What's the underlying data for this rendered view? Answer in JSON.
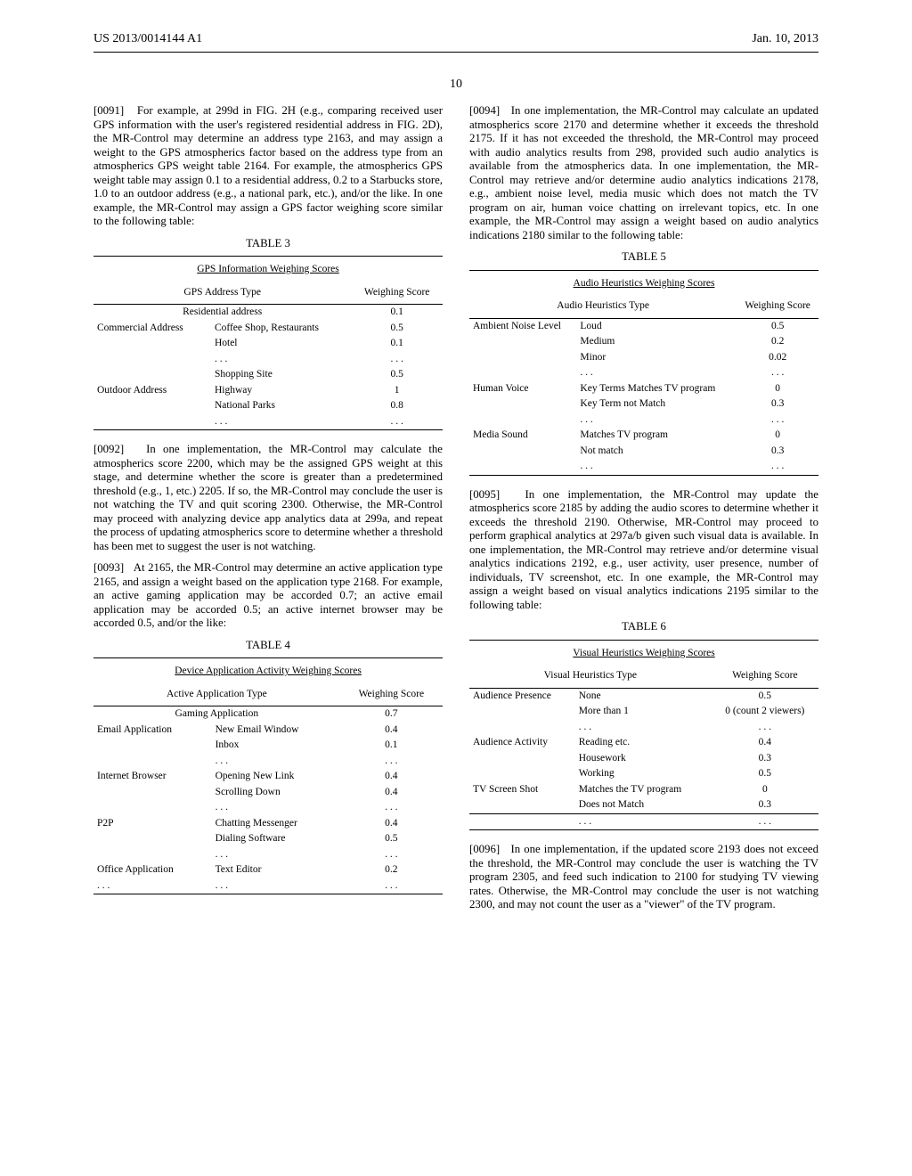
{
  "header": {
    "left": "US 2013/0014144 A1",
    "right": "Jan. 10, 2013"
  },
  "page_number": "10",
  "left_column": {
    "para1": {
      "num": "[0091]",
      "text": "For example, at 299d in FIG. 2H (e.g., comparing received user GPS information with the user's registered residential address in FIG. 2D), the MR-Control may determine an address type 2163, and may assign a weight to the GPS atmospherics factor based on the address type from an atmospherics GPS weight table 2164. For example, the atmospherics GPS weight table may assign 0.1 to a residential address, 0.2 to a Starbucks store, 1.0 to an outdoor address (e.g., a national park, etc.), and/or the like. In one example, the MR-Control may assign a GPS factor weighing score similar to the following table:"
    },
    "table3": {
      "label": "TABLE 3",
      "title": "GPS Information Weighing Scores",
      "header": [
        "GPS Address Type",
        "Weighing Score"
      ],
      "rows": [
        [
          "Residential address",
          "",
          "0.1"
        ],
        [
          "Commercial Address",
          "Coffee Shop, Restaurants",
          "0.5"
        ],
        [
          "",
          "Hotel",
          "0.1"
        ],
        [
          "",
          ". . .",
          ". . ."
        ],
        [
          "",
          "Shopping Site",
          "0.5"
        ],
        [
          "Outdoor Address",
          "Highway",
          "1"
        ],
        [
          "",
          "National Parks",
          "0.8"
        ],
        [
          "",
          ". . .",
          ". . ."
        ]
      ]
    },
    "para2": {
      "num": "[0092]",
      "text": "In one implementation, the MR-Control may calculate the atmospherics score 2200, which may be the assigned GPS weight at this stage, and determine whether the score is greater than a predetermined threshold (e.g., 1, etc.) 2205. If so, the MR-Control may conclude the user is not watching the TV and quit scoring 2300. Otherwise, the MR-Control may proceed with analyzing device app analytics data at 299a, and repeat the process of updating atmospherics score to determine whether a threshold has been met to suggest the user is not watching."
    },
    "para3": {
      "num": "[0093]",
      "text": "At 2165, the MR-Control may determine an active application type 2165, and assign a weight based on the application type 2168. For example, an active gaming application may be accorded 0.7; an active email application may be accorded 0.5; an active internet browser may be accorded 0.5, and/or the like:"
    },
    "table4": {
      "label": "TABLE 4",
      "title": "Device Application Activity Weighing Scores",
      "header": [
        "Active Application Type",
        "Weighing Score"
      ],
      "rows": [
        [
          "Gaming Application",
          "",
          "0.7"
        ],
        [
          "Email Application",
          "New Email Window",
          "0.4"
        ],
        [
          "",
          "Inbox",
          "0.1"
        ],
        [
          "",
          ". . .",
          ". . ."
        ],
        [
          "Internet Browser",
          "Opening New Link",
          "0.4"
        ],
        [
          "",
          "Scrolling Down",
          "0.4"
        ],
        [
          "",
          ". . .",
          ". . ."
        ],
        [
          "P2P",
          "Chatting Messenger",
          "0.4"
        ],
        [
          "",
          "Dialing Software",
          "0.5"
        ],
        [
          "",
          ". . .",
          ". . ."
        ],
        [
          "Office Application",
          "Text Editor",
          "0.2"
        ],
        [
          ". . .",
          ". . .",
          ". . ."
        ]
      ]
    }
  },
  "right_column": {
    "para4": {
      "num": "[0094]",
      "text": "In one implementation, the MR-Control may calculate an updated atmospherics score 2170 and determine whether it exceeds the threshold 2175. If it has not exceeded the threshold, the MR-Control may proceed with audio analytics results from 298, provided such audio analytics is available from the atmospherics data. In one implementation, the MR-Control may retrieve and/or determine audio analytics indications 2178, e.g., ambient noise level, media music which does not match the TV program on air, human voice chatting on irrelevant topics, etc. In one example, the MR-Control may assign a weight based on audio analytics indications 2180 similar to the following table:"
    },
    "table5": {
      "label": "TABLE 5",
      "title": "Audio Heuristics Weighing Scores",
      "header": [
        "Audio Heuristics Type",
        "Weighing Score"
      ],
      "rows": [
        [
          "Ambient Noise Level",
          "Loud",
          "0.5"
        ],
        [
          "",
          "Medium",
          "0.2"
        ],
        [
          "",
          "Minor",
          "0.02"
        ],
        [
          "",
          ". . .",
          ". . ."
        ],
        [
          "Human Voice",
          "Key Terms Matches TV program",
          "0"
        ],
        [
          "",
          "Key Term not Match",
          "0.3"
        ],
        [
          "",
          ". . .",
          ". . ."
        ],
        [
          "Media Sound",
          "Matches TV program",
          "0"
        ],
        [
          "",
          "Not match",
          "0.3"
        ],
        [
          "",
          ". . .",
          ". . ."
        ]
      ]
    },
    "para5": {
      "num": "[0095]",
      "text": "In one implementation, the MR-Control may update the atmospherics score 2185 by adding the audio scores to determine whether it exceeds the threshold 2190. Otherwise, MR-Control may proceed to perform graphical analytics at 297a/b given such visual data is available. In one implementation, the MR-Control may retrieve and/or determine visual analytics indications 2192, e.g., user activity, user presence, number of individuals, TV screenshot, etc. In one example, the MR-Control may assign a weight based on visual analytics indications 2195 similar to the following table:"
    },
    "table6": {
      "label": "TABLE 6",
      "title": "Visual Heuristics Weighing Scores",
      "header": [
        "Visual Heuristics Type",
        "Weighing Score"
      ],
      "rows": [
        [
          "Audience Presence",
          "None",
          "0.5"
        ],
        [
          "",
          "More than 1",
          "0 (count 2 viewers)"
        ],
        [
          "",
          ". . .",
          ". . ."
        ],
        [
          "Audience Activity",
          "Reading etc.",
          "0.4"
        ],
        [
          "",
          "Housework",
          "0.3"
        ],
        [
          "",
          "Working",
          "0.5"
        ],
        [
          "TV Screen Shot",
          "Matches the TV program",
          "0"
        ],
        [
          "",
          "Does not Match",
          "0.3"
        ],
        [
          "",
          ". . .",
          ". . ."
        ]
      ]
    },
    "para6": {
      "num": "[0096]",
      "text": "In one implementation, if the updated score 2193 does not exceed the threshold, the MR-Control may conclude the user is watching the TV program 2305, and feed such indication to 2100 for studying TV viewing rates. Otherwise, the MR-Control may conclude the user is not watching 2300, and may not count the user as a \"viewer\" of the TV program."
    }
  }
}
